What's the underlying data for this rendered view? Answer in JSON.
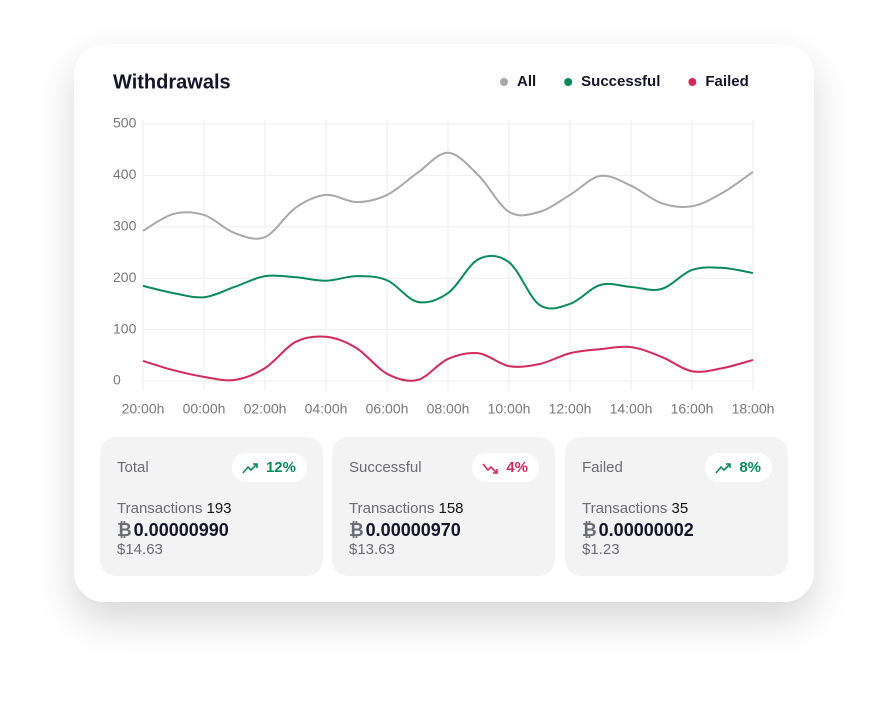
{
  "chart_data": {
    "type": "line",
    "title": "Withdrawals",
    "x": [
      0,
      0.5,
      1,
      1.5,
      2,
      2.5,
      3,
      3.5,
      4,
      4.5,
      5,
      5.5,
      6,
      6.5,
      7,
      7.5,
      8,
      8.5,
      9,
      9.5,
      10
    ],
    "xlim": [
      0,
      10
    ],
    "xticks": [
      {
        "value": 0,
        "label": "20:00h"
      },
      {
        "value": 1,
        "label": "00:00h"
      },
      {
        "value": 2,
        "label": "02:00h"
      },
      {
        "value": 3,
        "label": "04:00h"
      },
      {
        "value": 4,
        "label": "06:00h"
      },
      {
        "value": 5,
        "label": "08:00h"
      },
      {
        "value": 6,
        "label": "10:00h"
      },
      {
        "value": 7,
        "label": "12:00h"
      },
      {
        "value": 8,
        "label": "14:00h"
      },
      {
        "value": 9,
        "label": "16:00h"
      },
      {
        "value": 10,
        "label": "18:00h"
      }
    ],
    "ylim": [
      0,
      500
    ],
    "yticks": [
      0,
      100,
      200,
      300,
      400,
      500
    ],
    "grid": true,
    "series": [
      {
        "name": "All",
        "color": "#a8a8a8",
        "values": [
          292,
          325,
          323,
          288,
          280,
          337,
          362,
          348,
          362,
          405,
          444,
          400,
          329,
          329,
          362,
          399,
          380,
          346,
          340,
          366,
          407
        ]
      },
      {
        "name": "Successful",
        "color": "#0b8a5c",
        "values": [
          185,
          171,
          163,
          183,
          204,
          202,
          195,
          204,
          196,
          154,
          171,
          237,
          231,
          148,
          150,
          187,
          183,
          179,
          216,
          220,
          210
        ]
      },
      {
        "name": "Failed",
        "color": "#d22a5c",
        "values": [
          39,
          21,
          8,
          2,
          25,
          76,
          86,
          64,
          14,
          2,
          43,
          54,
          29,
          33,
          54,
          62,
          66,
          47,
          19,
          25,
          41
        ]
      }
    ]
  },
  "cards": [
    {
      "label": "Total",
      "change": "12%",
      "trend": "up",
      "color": "#0b8a5c",
      "transactions_label": "Transactions",
      "transactions": 193,
      "currency_symbol": "₿",
      "amount": "0.00000990",
      "usd": "$14.63"
    },
    {
      "label": "Successful",
      "change": "4%",
      "trend": "down",
      "color": "#d22a5c",
      "transactions_label": "Transactions",
      "transactions": 158,
      "currency_symbol": "₿",
      "amount": "0.00000970",
      "usd": "$13.63"
    },
    {
      "label": "Failed",
      "change": "8%",
      "trend": "up",
      "color": "#0b8a5c",
      "transactions_label": "Transactions",
      "transactions": 35,
      "currency_symbol": "₿",
      "amount": "0.00000002",
      "usd": "$1.23"
    }
  ]
}
